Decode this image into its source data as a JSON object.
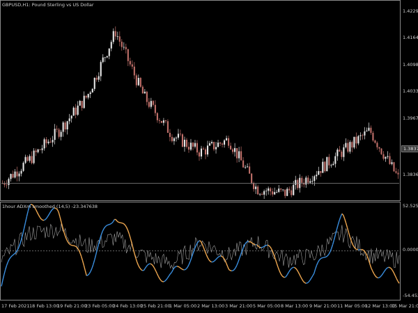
{
  "chart": {
    "title": "GBPUSD,H1:  Pound Sterling vs US Dollar",
    "price_labels": [
      "1.42295",
      "1.41640",
      "1.40985",
      "1.40330",
      "1.39675",
      "1.38377",
      "1.38365"
    ],
    "current_price": "1.38377"
  },
  "indicator": {
    "title": "1hour ADXm smoothed (14,5) -23.347638",
    "scale_top": "52.525168",
    "scale_mid": "0.000000",
    "scale_bottom": "-54.4523"
  },
  "time_axis": [
    "17 Feb 2021",
    "18 Feb 13:00",
    "19 Feb 21:00",
    "23 Feb 05:00",
    "24 Feb 13:00",
    "25 Feb 21:00",
    "1 Mar 05:00",
    "2 Mar 13:00",
    "3 Mar 21:00",
    "5 Mar 05:00",
    "8 Mar 13:00",
    "9 Mar 21:00",
    "11 Mar 05:00",
    "12 Mar 13:00",
    "15 Mar 21:00"
  ],
  "colors": {
    "bull_candle": "#e8e8e8",
    "bear_candle": "#c0706a",
    "adx_up": "#3a8fe0",
    "adx_down": "#f0a850",
    "adx_raw": "#a0a0a0",
    "grid": "#8a8a8a"
  },
  "chart_data": [
    {
      "type": "line",
      "title": "GBPUSD,H1:  Pound Sterling vs US Dollar",
      "x": [
        "17 Feb 2021",
        "18 Feb 13:00",
        "19 Feb 21:00",
        "23 Feb 05:00",
        "24 Feb 13:00",
        "25 Feb 21:00",
        "1 Mar 05:00",
        "2 Mar 13:00",
        "3 Mar 21:00",
        "5 Mar 05:00",
        "8 Mar 13:00",
        "9 Mar 21:00",
        "11 Mar 05:00",
        "12 Mar 13:00",
        "15 Mar 21:00"
      ],
      "series": [
        {
          "values": [
            1.3838,
            1.3895,
            1.396,
            1.404,
            1.419,
            1.404,
            1.395,
            1.391,
            1.394,
            1.3825,
            1.3815,
            1.386,
            1.391,
            1.396,
            1.385
          ]
        }
      ],
      "ylim": [
        1.38,
        1.426
      ]
    },
    {
      "type": "line",
      "title": "1hour ADXm smoothed (14,5) -23.347638",
      "x": [
        "17 Feb 2021",
        "18 Feb 13:00",
        "19 Feb 21:00",
        "23 Feb 05:00",
        "24 Feb 13:00",
        "25 Feb 21:00",
        "1 Mar 05:00",
        "2 Mar 13:00",
        "3 Mar 21:00",
        "5 Mar 05:00",
        "8 Mar 13:00",
        "9 Mar 21:00",
        "11 Mar 05:00",
        "12 Mar 13:00",
        "15 Mar 21:00"
      ],
      "series": [
        {
          "values": [
            -40,
            45,
            40,
            -25,
            45,
            -20,
            -30,
            5,
            -20,
            15,
            -25,
            -30,
            35,
            -20,
            -30
          ]
        },
        {
          "values": [
            -10,
            20,
            25,
            5,
            15,
            -5,
            -15,
            10,
            -5,
            10,
            -10,
            -5,
            20,
            -5,
            -10
          ]
        }
      ],
      "ylim": [
        -54.4523,
        52.525168
      ]
    }
  ]
}
